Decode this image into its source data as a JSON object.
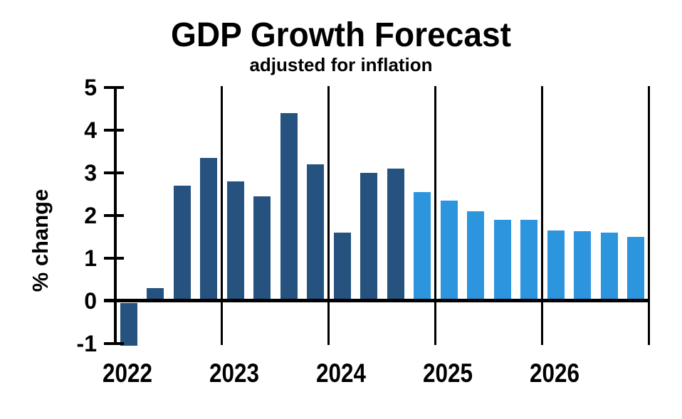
{
  "page": {
    "background": "#ffffff"
  },
  "chart_data": {
    "type": "bar",
    "title": "GDP Growth Forecast",
    "subtitle": "adjusted for inflation",
    "xlabel": "",
    "ylabel": "% change",
    "ylim": [
      -1,
      5
    ],
    "y_ticks": [
      5,
      4,
      3,
      2,
      1,
      0,
      -1
    ],
    "x_year_labels": [
      "2022",
      "2023",
      "2024",
      "2025",
      "2026"
    ],
    "quarters_per_year": 4,
    "legend_position": "none",
    "grid": "vertical-year-separators",
    "colors": {
      "actual_bar": "#25527E",
      "forecast_bar": "#2D94DE",
      "axis": "#000000",
      "text": "#000000"
    },
    "points": [
      {
        "quarter": "2022 Q1",
        "value": -1.0,
        "forecast": false
      },
      {
        "quarter": "2022 Q2",
        "value": 0.3,
        "forecast": false
      },
      {
        "quarter": "2022 Q3",
        "value": 2.7,
        "forecast": false
      },
      {
        "quarter": "2022 Q4",
        "value": 3.35,
        "forecast": false
      },
      {
        "quarter": "2023 Q1",
        "value": 2.8,
        "forecast": false
      },
      {
        "quarter": "2023 Q2",
        "value": 2.45,
        "forecast": false
      },
      {
        "quarter": "2023 Q3",
        "value": 4.4,
        "forecast": false
      },
      {
        "quarter": "2023 Q4",
        "value": 3.2,
        "forecast": false
      },
      {
        "quarter": "2024 Q1",
        "value": 1.6,
        "forecast": false
      },
      {
        "quarter": "2024 Q2",
        "value": 3.0,
        "forecast": false
      },
      {
        "quarter": "2024 Q3",
        "value": 3.1,
        "forecast": false
      },
      {
        "quarter": "2024 Q4",
        "value": 2.55,
        "forecast": true
      },
      {
        "quarter": "2025 Q1",
        "value": 2.35,
        "forecast": true
      },
      {
        "quarter": "2025 Q2",
        "value": 2.1,
        "forecast": true
      },
      {
        "quarter": "2025 Q3",
        "value": 1.9,
        "forecast": true
      },
      {
        "quarter": "2025 Q4",
        "value": 1.9,
        "forecast": true
      },
      {
        "quarter": "2026 Q1",
        "value": 1.65,
        "forecast": true
      },
      {
        "quarter": "2026 Q2",
        "value": 1.63,
        "forecast": true
      },
      {
        "quarter": "2026 Q3",
        "value": 1.6,
        "forecast": true
      },
      {
        "quarter": "2026 Q4",
        "value": 1.5,
        "forecast": true
      }
    ]
  }
}
